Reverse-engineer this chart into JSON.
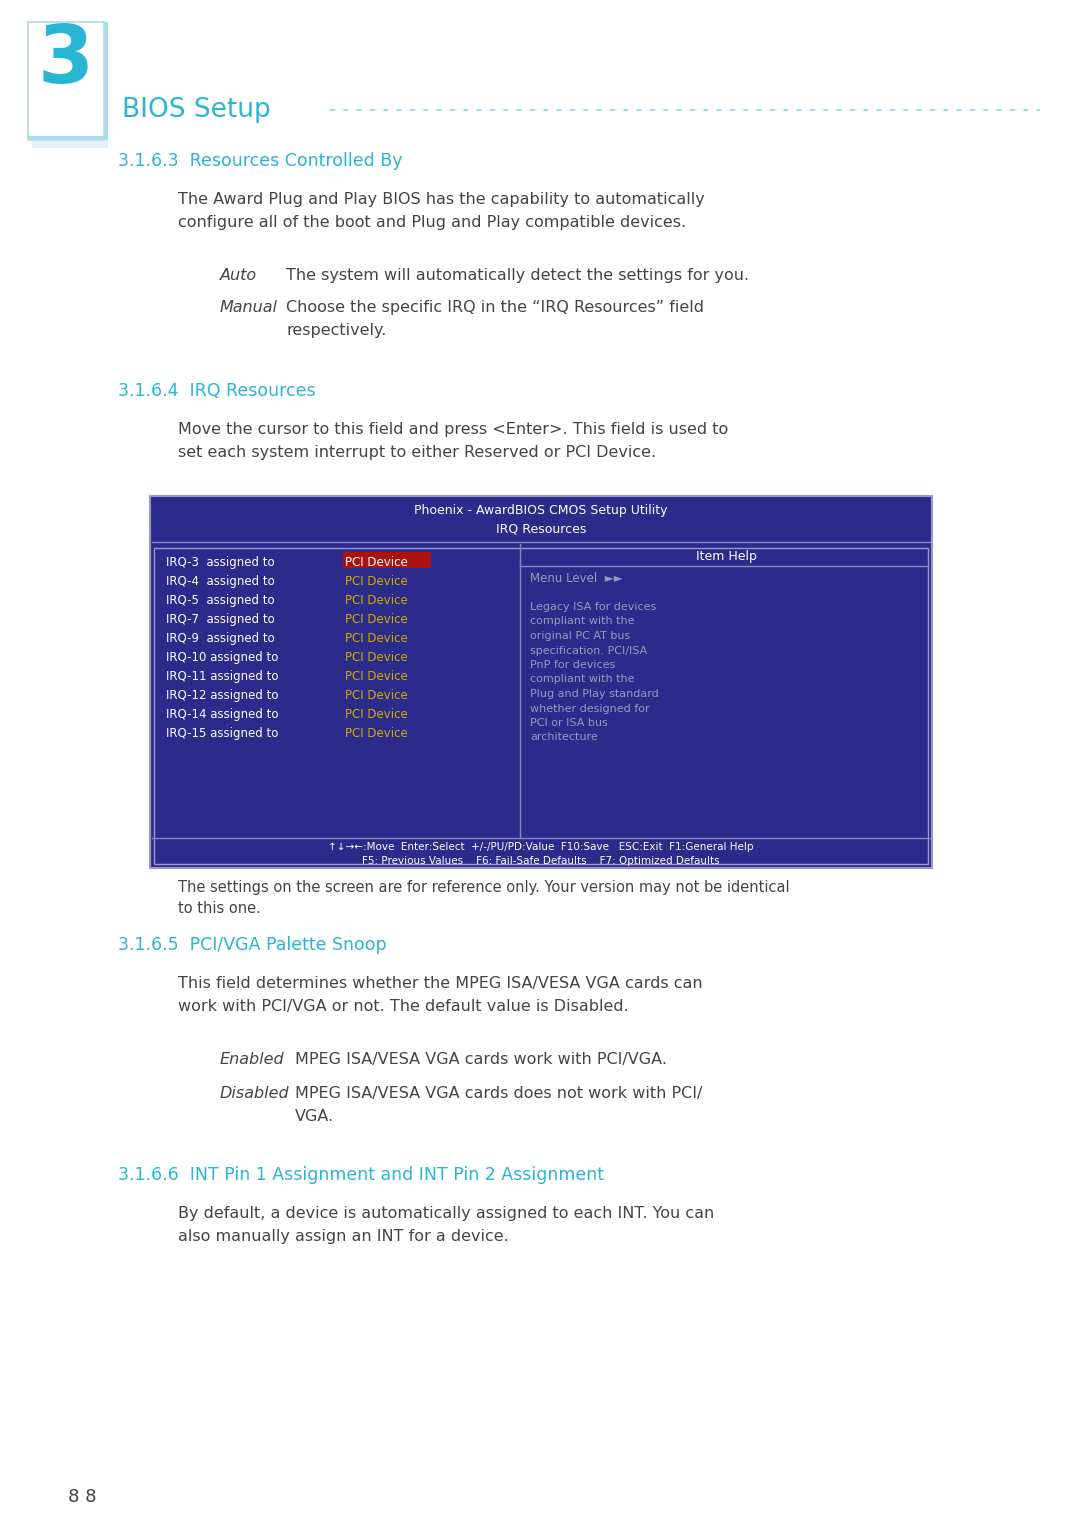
{
  "bg_color": "#ffffff",
  "cyan_color": "#29b6d4",
  "light_cyan_bg": "#dff0f7",
  "light_cyan_border": "#b0dce8",
  "dark_blue_bg": "#2b2b8c",
  "highlight_red": "#aa1111",
  "yellow_text": "#d4aa00",
  "gray_text": "#9999bb",
  "white_text": "#ffffff",
  "body_text": "#444444",
  "chapter_num": "3",
  "chapter_title": "BIOS Setup",
  "section_363": "3.1.6.3  Resources Controlled By",
  "section_364": "3.1.6.4  IRQ Resources",
  "section_365": "3.1.6.5  PCI/VGA Palette Snoop",
  "section_366": "3.1.6.6  INT Pin 1 Assignment and INT Pin 2 Assignment",
  "bios_title1": "Phoenix - AwardBIOS CMOS Setup Utility",
  "bios_title2": "IRQ Resources",
  "bios_col_right": "Item Help",
  "bios_menu_level": "Menu Level  ►►",
  "bios_help_text": "Legacy ISA for devices\ncompliant with the\noriginal PC AT bus\nspecification. PCI/ISA\nPnP for devices\ncompliant with the\nPlug and Play standard\nwhether designed for\nPCI or ISA bus\narchitecture",
  "bios_bottom1": "↑↓→←:Move  Enter:Select  +/-/PU/PD:Value  F10:Save   ESC:Exit  F1:General Help",
  "bios_bottom2": "F5: Previous Values    F6: Fail-Safe Defaults    F7: Optimized Defaults",
  "irq_rows": [
    [
      "IRQ-3  assigned to",
      "PCI Device",
      true
    ],
    [
      "IRQ-4  assigned to",
      "PCI Device",
      false
    ],
    [
      "IRQ-5  assigned to",
      "PCI Device",
      false
    ],
    [
      "IRQ-7  assigned to",
      "PCI Device",
      false
    ],
    [
      "IRQ-9  assigned to",
      "PCI Device",
      false
    ],
    [
      "IRQ-10 assigned to",
      "PCI Device",
      false
    ],
    [
      "IRQ-11 assigned to",
      "PCI Device",
      false
    ],
    [
      "IRQ-12 assigned to",
      "PCI Device",
      false
    ],
    [
      "IRQ-14 assigned to",
      "PCI Device",
      false
    ],
    [
      "IRQ-15 assigned to",
      "PCI Device",
      false
    ]
  ],
  "page_num": "8 8"
}
